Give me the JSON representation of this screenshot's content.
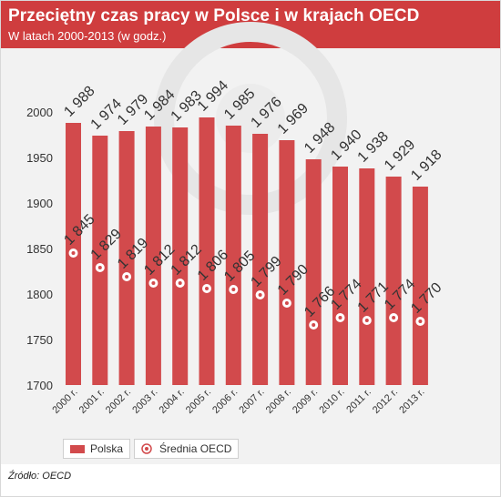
{
  "header": {
    "title": "Przeciętny czas pracy w Polsce i w krajach OECD",
    "subtitle": "W latach 2000-2013 (w godz.)"
  },
  "legend": {
    "polska": "Polska",
    "oecd": "Średnia OECD"
  },
  "source": "Źródło: OECD",
  "colors": {
    "bar": "#d24a4c",
    "header": "#cf3d3e",
    "marker_fill": "#ffffff",
    "marker_ring": "#d24a4c"
  },
  "chart_data": {
    "type": "bar",
    "categories": [
      "2000 r.",
      "2001 r.",
      "2002 r.",
      "2003 r.",
      "2004 r.",
      "2005 r.",
      "2006 r.",
      "2007 r.",
      "2008 r.",
      "2009 r.",
      "2010 r.",
      "2011 r.",
      "2012 r.",
      "2013 r."
    ],
    "series": [
      {
        "name": "Polska",
        "type": "bar",
        "values": [
          1988,
          1974,
          1979,
          1984,
          1983,
          1994,
          1985,
          1976,
          1969,
          1948,
          1940,
          1938,
          1929,
          1918
        ],
        "labels": [
          "1 988",
          "1 974",
          "1 979",
          "1 984",
          "1 983",
          "1 994",
          "1 985",
          "1 976",
          "1 969",
          "1 948",
          "1 940",
          "1 938",
          "1 929",
          "1 918"
        ]
      },
      {
        "name": "Średnia OECD",
        "type": "marker",
        "values": [
          1845,
          1829,
          1819,
          1812,
          1812,
          1806,
          1805,
          1799,
          1790,
          1766,
          1774,
          1771,
          1774,
          1770
        ],
        "labels": [
          "1 845",
          "1 829",
          "1 819",
          "1 812",
          "1 812",
          "1 806",
          "1 805",
          "1 799",
          "1 790",
          "1 766",
          "1 774",
          "1 771",
          "1 774",
          "1 770"
        ]
      }
    ],
    "y_ticks": [
      "1700",
      "1750",
      "1800",
      "1850",
      "1900",
      "1950",
      "2000"
    ],
    "ylim": [
      1700,
      2000
    ],
    "grid": false,
    "legend_position": "bottom-left"
  }
}
